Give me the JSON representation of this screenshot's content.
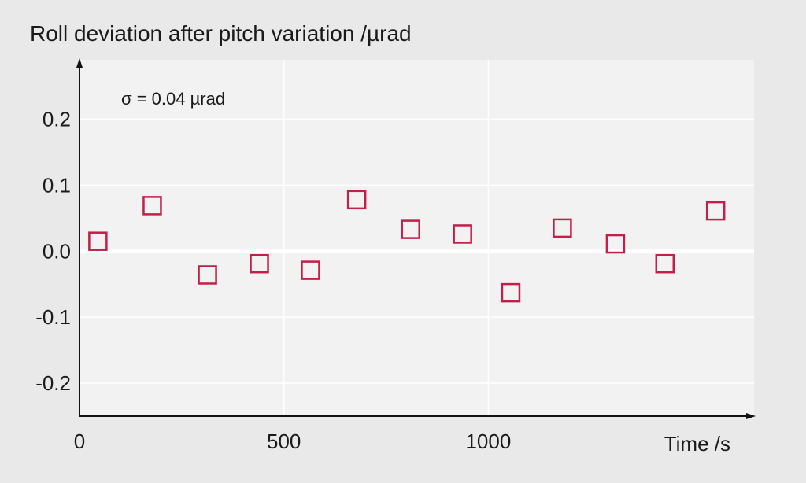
{
  "chart_data": {
    "type": "scatter",
    "title": "Roll deviation after pitch variation /µrad",
    "xlabel": "Time /s",
    "ylabel": "",
    "annotation": "σ = 0.04 µrad",
    "xlim": [
      0,
      1650
    ],
    "ylim": [
      -0.25,
      0.29
    ],
    "x_ticks": [
      0,
      500,
      1000
    ],
    "x_tick_labels": [
      "0",
      "500",
      "1000"
    ],
    "y_ticks": [
      0.2,
      0.1,
      0.0,
      -0.1,
      -0.2
    ],
    "y_tick_labels": [
      "0.2",
      "0.1",
      "0.0",
      "-0.1",
      "-0.2"
    ],
    "grid": true,
    "series": [
      {
        "marker": "open-square",
        "color": "#c41e4a",
        "x": [
          45,
          178,
          313,
          440,
          565,
          678,
          810,
          937,
          1055,
          1181,
          1311,
          1432,
          1556
        ],
        "y": [
          0.015,
          0.069,
          -0.036,
          -0.019,
          -0.029,
          0.078,
          0.033,
          0.026,
          -0.063,
          0.035,
          0.011,
          -0.019,
          0.061
        ]
      }
    ],
    "colors": {
      "background": "#e9e9e9",
      "plot_area": "#f2f2f2",
      "grid": "#ffffff",
      "marker": "#c41e4a",
      "axis": "#111111"
    }
  }
}
